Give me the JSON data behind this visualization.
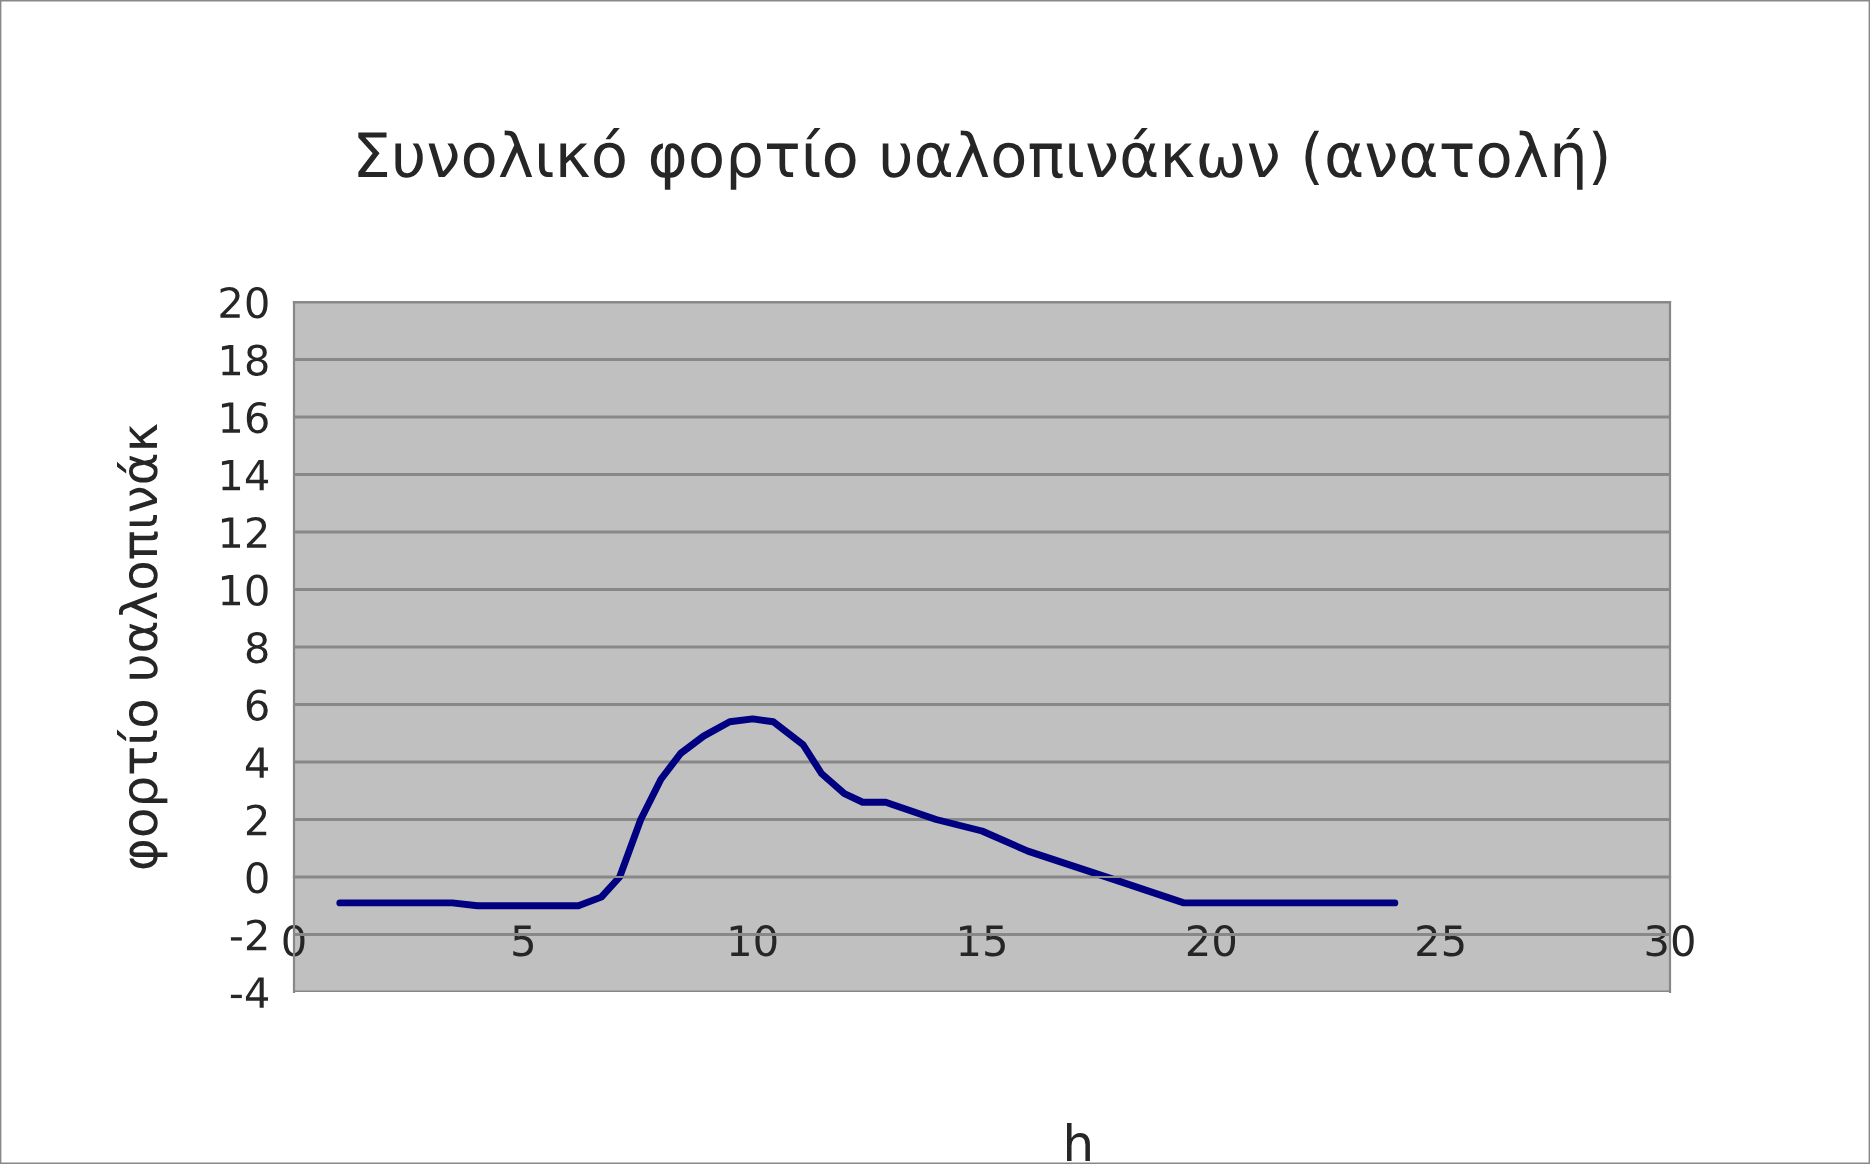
{
  "chart_data": {
    "type": "line",
    "title": "Συνολικό φορτίο υαλοπινάκων (ανατολή)",
    "xlabel": "h",
    "ylabel": "φορτίο υαλοπινάκ",
    "x": [
      1,
      3.45,
      4,
      6.2,
      6.7,
      7.1,
      7.56,
      8,
      8.43,
      8.93,
      9.5,
      10,
      10.45,
      11.1,
      11.5,
      12,
      12.4,
      12.9,
      14,
      15,
      16,
      17.9,
      19.4,
      24
    ],
    "series": [
      {
        "color": "#000080",
        "values": [
          -0.9,
          -0.9,
          -1.0,
          -1.0,
          -0.7,
          0,
          2.0,
          3.4,
          4.3,
          4.9,
          5.4,
          5.5,
          5.4,
          4.6,
          3.6,
          2.9,
          2.6,
          2.6,
          2.0,
          1.6,
          0.9,
          -0.1,
          -0.9,
          -0.9
        ]
      }
    ],
    "xlim": [
      0,
      30
    ],
    "xticks": [
      0,
      5,
      10,
      15,
      20,
      25,
      30
    ],
    "ylim": [
      -4,
      20
    ],
    "yticks": [
      -4,
      -2,
      0,
      2,
      4,
      6,
      8,
      10,
      12,
      14,
      16,
      18,
      20
    ],
    "grid": "y",
    "marker": "none",
    "line_style": "solid",
    "legend": false
  }
}
